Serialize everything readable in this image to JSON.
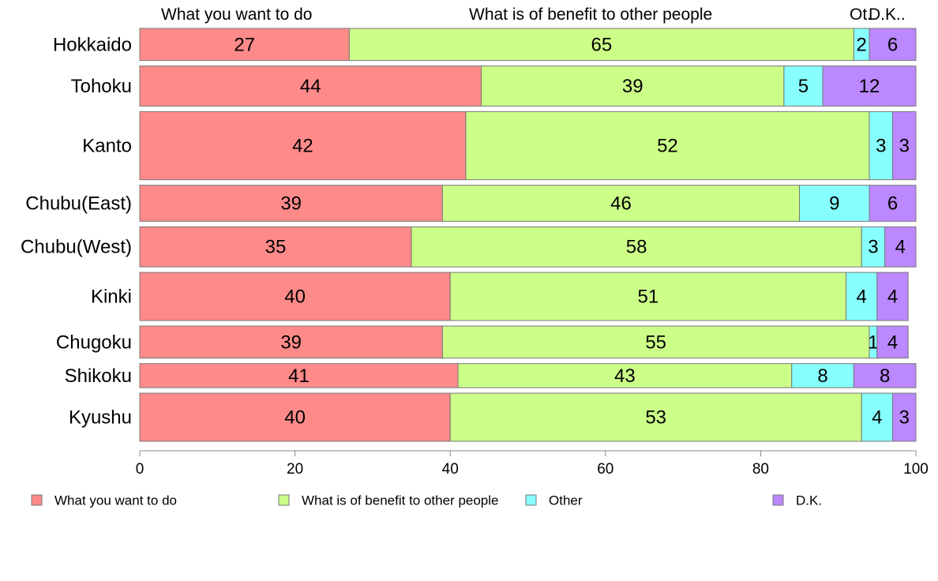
{
  "chart_data": {
    "type": "bar",
    "orientation": "horizontal",
    "stacked": true,
    "categories": [
      "Hokkaido",
      "Tohoku",
      "Kanto",
      "Chubu(East)",
      "Chubu(West)",
      "Kinki",
      "Chugoku",
      "Shikoku",
      "Kyushu"
    ],
    "series": [
      {
        "name": "What you want to do",
        "color": "#ff8a8a",
        "values": [
          27,
          44,
          42,
          39,
          35,
          40,
          39,
          41,
          40
        ]
      },
      {
        "name": "What is of benefit to other people",
        "color": "#ccff88",
        "values": [
          65,
          39,
          52,
          46,
          58,
          51,
          55,
          43,
          53
        ]
      },
      {
        "name": "Other",
        "color": "#88ffff",
        "values": [
          2,
          5,
          3,
          9,
          3,
          4,
          1,
          8,
          4
        ]
      },
      {
        "name": "D.K.",
        "color": "#bb88ff",
        "values": [
          6,
          12,
          3,
          6,
          4,
          4,
          4,
          8,
          3
        ]
      }
    ],
    "header_labels": [
      "What you want to do",
      "What is of benefit to other people",
      "Ot.",
      "D.K.."
    ],
    "xlim": [
      0,
      100
    ],
    "xticks": [
      0,
      20,
      40,
      60,
      80,
      100
    ],
    "bar_weights": [
      8,
      10,
      17,
      9,
      10,
      12,
      8,
      6,
      12
    ],
    "grid": false,
    "legend_position": "bottom"
  }
}
